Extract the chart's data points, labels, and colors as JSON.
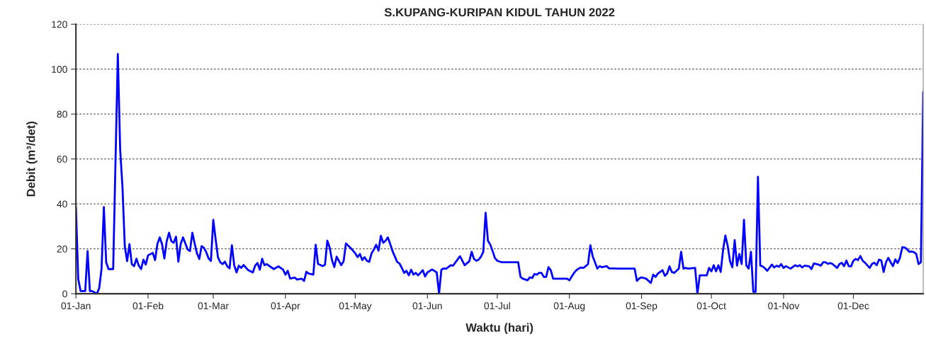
{
  "chart_data": {
    "type": "line",
    "title": "S.KUPANG-KURIPAN KIDUL TAHUN 2022",
    "xlabel": "Waktu (hari)",
    "ylabel": "Debit (m³/det)",
    "xlim": [
      "2022-01-01",
      "2022-12-31"
    ],
    "xticks": [
      {
        "value": "2022-01-01",
        "label": "01-Jan"
      },
      {
        "value": "2022-02-01",
        "label": "01-Feb"
      },
      {
        "value": "2022-03-01",
        "label": "01-Mar"
      },
      {
        "value": "2022-04-01",
        "label": "01-Apr"
      },
      {
        "value": "2022-05-01",
        "label": "01-May"
      },
      {
        "value": "2022-06-01",
        "label": "01-Jun"
      },
      {
        "value": "2022-07-01",
        "label": "01-Jul"
      },
      {
        "value": "2022-08-01",
        "label": "01-Aug"
      },
      {
        "value": "2022-09-01",
        "label": "01-Sep"
      },
      {
        "value": "2022-10-01",
        "label": "01-Oct"
      },
      {
        "value": "2022-11-01",
        "label": "01-Nov"
      },
      {
        "value": "2022-12-01",
        "label": "01-Dec"
      }
    ],
    "ylim": [
      0,
      120
    ],
    "yticks": [
      0,
      20,
      40,
      60,
      80,
      100,
      120
    ],
    "grid": "y",
    "marker": "none",
    "line_style": "solid",
    "series": [
      {
        "color": "#0000ff",
        "x": [
          "2022-01-01",
          "2022-01-02",
          "2022-01-03",
          "2022-01-05",
          "2022-01-06",
          "2022-01-07",
          "2022-01-08",
          "2022-01-10",
          "2022-01-11",
          "2022-01-12",
          "2022-01-13",
          "2022-01-14",
          "2022-01-15",
          "2022-01-17",
          "2022-01-19",
          "2022-01-20",
          "2022-01-21",
          "2022-01-22",
          "2022-01-23",
          "2022-01-24",
          "2022-01-25",
          "2022-01-26",
          "2022-01-27",
          "2022-01-28",
          "2022-01-29",
          "2022-01-30",
          "2022-01-31",
          "2022-02-01",
          "2022-02-03",
          "2022-02-04",
          "2022-02-05",
          "2022-02-06",
          "2022-02-07",
          "2022-02-08",
          "2022-02-09",
          "2022-02-10",
          "2022-02-11",
          "2022-02-12",
          "2022-02-13",
          "2022-02-14",
          "2022-02-15",
          "2022-02-16",
          "2022-02-17",
          "2022-02-18",
          "2022-02-19",
          "2022-02-20",
          "2022-02-21",
          "2022-02-22",
          "2022-02-23",
          "2022-02-24",
          "2022-02-25",
          "2022-02-26",
          "2022-02-27",
          "2022-02-28",
          "2022-03-01",
          "2022-03-02",
          "2022-03-03",
          "2022-03-04",
          "2022-03-05",
          "2022-03-06",
          "2022-03-07",
          "2022-03-08",
          "2022-03-09",
          "2022-03-10",
          "2022-03-11",
          "2022-03-12",
          "2022-03-13",
          "2022-03-14",
          "2022-03-16",
          "2022-03-18",
          "2022-03-19",
          "2022-03-20",
          "2022-03-21",
          "2022-03-22",
          "2022-03-23",
          "2022-03-24",
          "2022-03-27",
          "2022-03-29",
          "2022-03-31",
          "2022-04-01",
          "2022-04-02",
          "2022-04-03",
          "2022-04-05",
          "2022-04-06",
          "2022-04-08",
          "2022-04-09",
          "2022-04-10",
          "2022-04-11",
          "2022-04-13",
          "2022-04-14",
          "2022-04-15",
          "2022-04-17",
          "2022-04-18",
          "2022-04-19",
          "2022-04-20",
          "2022-04-21",
          "2022-04-22",
          "2022-04-23",
          "2022-04-25",
          "2022-04-26",
          "2022-04-27",
          "2022-04-29",
          "2022-05-01",
          "2022-05-02",
          "2022-05-03",
          "2022-05-04",
          "2022-05-05",
          "2022-05-06",
          "2022-05-07",
          "2022-05-08",
          "2022-05-09",
          "2022-05-10",
          "2022-05-11",
          "2022-05-12",
          "2022-05-13",
          "2022-05-14",
          "2022-05-15",
          "2022-05-16",
          "2022-05-17",
          "2022-05-19",
          "2022-05-20",
          "2022-05-21",
          "2022-05-22",
          "2022-05-23",
          "2022-05-24",
          "2022-05-25",
          "2022-05-26",
          "2022-05-27",
          "2022-05-28",
          "2022-05-30",
          "2022-05-31",
          "2022-06-01",
          "2022-06-03",
          "2022-06-05",
          "2022-06-06",
          "2022-06-07",
          "2022-06-08",
          "2022-06-09",
          "2022-06-11",
          "2022-06-12",
          "2022-06-15",
          "2022-06-17",
          "2022-06-19",
          "2022-06-20",
          "2022-06-21",
          "2022-06-22",
          "2022-06-23",
          "2022-06-24",
          "2022-06-25",
          "2022-06-26",
          "2022-06-27",
          "2022-06-28",
          "2022-06-29",
          "2022-06-30",
          "2022-07-01",
          "2022-07-03",
          "2022-07-10",
          "2022-07-11",
          "2022-07-12",
          "2022-07-14",
          "2022-07-15",
          "2022-07-16",
          "2022-07-17",
          "2022-07-18",
          "2022-07-19",
          "2022-07-20",
          "2022-07-21",
          "2022-07-22",
          "2022-07-23",
          "2022-07-24",
          "2022-07-25",
          "2022-07-31",
          "2022-08-01",
          "2022-08-02",
          "2022-08-03",
          "2022-08-04",
          "2022-08-05",
          "2022-08-06",
          "2022-08-07",
          "2022-08-08",
          "2022-08-09",
          "2022-08-10",
          "2022-08-11",
          "2022-08-12",
          "2022-08-13",
          "2022-08-14",
          "2022-08-15",
          "2022-08-17",
          "2022-08-18",
          "2022-08-20",
          "2022-08-22",
          "2022-08-29",
          "2022-08-30",
          "2022-08-31",
          "2022-09-01",
          "2022-09-03",
          "2022-09-05",
          "2022-09-06",
          "2022-09-07",
          "2022-09-08",
          "2022-09-10",
          "2022-09-11",
          "2022-09-12",
          "2022-09-13",
          "2022-09-14",
          "2022-09-15",
          "2022-09-16",
          "2022-09-17",
          "2022-09-18",
          "2022-09-19",
          "2022-09-20",
          "2022-09-21",
          "2022-09-24",
          "2022-09-25",
          "2022-09-26",
          "2022-09-29",
          "2022-09-30",
          "2022-10-01",
          "2022-10-02",
          "2022-10-03",
          "2022-10-04",
          "2022-10-05",
          "2022-10-06",
          "2022-10-07",
          "2022-10-08",
          "2022-10-09",
          "2022-10-10",
          "2022-10-11",
          "2022-10-12",
          "2022-10-13",
          "2022-10-14",
          "2022-10-15",
          "2022-10-16",
          "2022-10-17",
          "2022-10-18",
          "2022-10-19",
          "2022-10-20",
          "2022-10-21",
          "2022-10-22",
          "2022-10-23",
          "2022-10-24",
          "2022-10-25",
          "2022-10-27",
          "2022-10-28",
          "2022-10-29",
          "2022-10-30",
          "2022-10-31",
          "2022-11-01",
          "2022-11-02",
          "2022-11-04",
          "2022-11-06",
          "2022-11-07",
          "2022-11-08",
          "2022-11-09",
          "2022-11-10",
          "2022-11-12",
          "2022-11-13",
          "2022-11-14",
          "2022-11-16",
          "2022-11-17",
          "2022-11-18",
          "2022-11-19",
          "2022-11-20",
          "2022-11-21",
          "2022-11-22",
          "2022-11-24",
          "2022-11-25",
          "2022-11-26",
          "2022-11-27",
          "2022-11-28",
          "2022-11-29",
          "2022-11-30",
          "2022-12-01",
          "2022-12-02",
          "2022-12-03",
          "2022-12-04",
          "2022-12-05",
          "2022-12-06",
          "2022-12-08",
          "2022-12-09",
          "2022-12-10",
          "2022-12-11",
          "2022-12-12",
          "2022-12-13",
          "2022-12-14",
          "2022-12-15",
          "2022-12-16",
          "2022-12-17",
          "2022-12-18",
          "2022-12-19",
          "2022-12-20",
          "2022-12-21",
          "2022-12-22",
          "2022-12-23",
          "2022-12-24",
          "2022-12-25",
          "2022-12-26",
          "2022-12-27",
          "2022-12-28",
          "2022-12-29",
          "2022-12-30",
          "2022-12-31"
        ],
        "values": [
          38.4,
          6.5,
          1.2,
          1.2,
          19,
          1.2,
          1.2,
          0,
          2.5,
          11,
          38.6,
          14,
          11,
          11,
          106.7,
          64.3,
          47.4,
          21,
          14.5,
          22.1,
          13.2,
          12.3,
          15.6,
          12.5,
          11,
          15.2,
          13,
          17.1,
          18.2,
          15,
          22.1,
          25.1,
          22.1,
          15.7,
          23.4,
          27.2,
          23.4,
          22.7,
          25.4,
          14.3,
          22.1,
          25.1,
          22.4,
          19.7,
          19,
          27.2,
          22.4,
          18,
          15.5,
          21.2,
          20.4,
          18.5,
          15.7,
          14.6,
          32.9,
          24.4,
          16.3,
          14,
          13.2,
          14.3,
          12.2,
          11.3,
          21.6,
          12.7,
          9.5,
          12.5,
          11.5,
          12.8,
          10.5,
          9.5,
          12.5,
          13.7,
          10.7,
          15.6,
          12.7,
          13.2,
          11,
          12.2,
          10.7,
          8.5,
          10.2,
          6.8,
          7.2,
          6.3,
          6.7,
          5.7,
          9.8,
          9,
          8.5,
          21.8,
          13.3,
          12.3,
          12.9,
          23.6,
          20.6,
          15,
          11.9,
          16.5,
          12.7,
          14.5,
          22.4,
          20.4,
          18,
          16.3,
          17.7,
          15,
          16.3,
          14.7,
          14.2,
          18,
          19.7,
          21.8,
          19.2,
          25.8,
          22.7,
          23.6,
          25.1,
          22.2,
          19,
          14.2,
          13.5,
          11.5,
          9.3,
          10.2,
          8.2,
          10.7,
          8.5,
          9.3,
          8.2,
          10.5,
          7.7,
          9.5,
          10.8,
          9.5,
          0,
          10.7,
          11.3,
          11.1,
          12.7,
          12.5,
          16.7,
          12.7,
          14.5,
          18.7,
          15.5,
          14.7,
          15.2,
          16.5,
          18.7,
          36.1,
          23.6,
          21.9,
          19,
          15.9,
          14.7,
          14,
          14,
          7.5,
          6.7,
          6,
          7.3,
          7,
          8.8,
          8.5,
          9.3,
          9.3,
          7.5,
          7.5,
          11.8,
          10.5,
          6.7,
          6.7,
          6,
          7.7,
          9.3,
          10.5,
          11.2,
          11.7,
          11.5,
          12.3,
          13.2,
          21.6,
          16.7,
          14,
          11.2,
          12.3,
          11.8,
          12.3,
          11.3,
          11.3,
          11.2,
          11.2,
          5.7,
          6.8,
          7.3,
          6.7,
          4.8,
          8.5,
          7.5,
          9,
          10.5,
          8,
          9,
          12.2,
          9.7,
          9.3,
          10.2,
          11.2,
          18.7,
          11.2,
          11.5,
          11.2,
          11.5,
          0,
          8.2,
          8.2,
          11.5,
          10,
          12.7,
          10,
          12.7,
          9.7,
          19.4,
          25.9,
          21.4,
          14.5,
          11.8,
          23.9,
          12.5,
          17.7,
          13.2,
          32.9,
          12.7,
          11.2,
          18.7,
          0.9,
          0.9,
          52.1,
          12.5,
          12.2,
          11.3,
          10.2,
          13,
          11.7,
          12.5,
          12,
          13.2,
          11.5,
          12.3,
          11.2,
          12.7,
          12.2,
          12.7,
          11.7,
          12.5,
          12.2,
          11,
          13.5,
          13,
          12.5,
          14,
          14,
          13.3,
          13.7,
          13.3,
          11.5,
          13.2,
          13.8,
          12.3,
          14.8,
          12.3,
          12.2,
          14.7,
          15.5,
          15,
          16.8,
          14.7,
          13.8,
          11.5,
          13.3,
          13.8,
          12.7,
          15.2,
          14.8,
          9.7,
          14,
          16,
          14,
          12.3,
          15.3,
          13.7,
          16,
          20.7,
          20.6,
          19.9,
          18.7,
          18.8,
          18.5,
          17.7,
          13.2,
          14,
          89.8
        ]
      }
    ]
  }
}
